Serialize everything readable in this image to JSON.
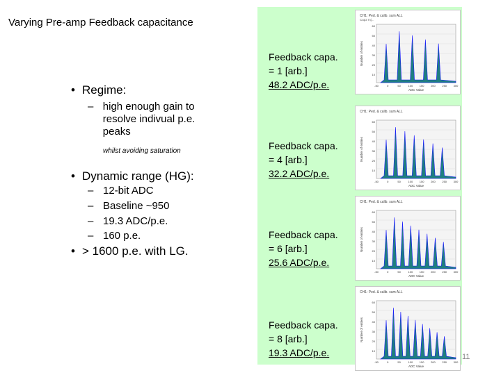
{
  "title": "Varying Pre-amp Feedback capacitance",
  "left": {
    "regime_label": "Regime:",
    "regime_sub": "high enough gain to resolve indivual p.e. peaks",
    "regime_note": "whilst avoiding saturation",
    "dynamic_label": "Dynamic range (HG):",
    "dynamic_items": [
      "12-bit ADC",
      "Baseline ~950",
      "19.3 ADC/p.e.",
      "160 p.e."
    ],
    "lg_label": "> 1600 p.e. with LG."
  },
  "panels": [
    {
      "line1": "Feedback capa.",
      "line2": "= 1 [arb.]",
      "line3": "48.2 ADC/p.e.",
      "hist_title": "CH1: Ped. & calib. sum ALL",
      "hist_sub": "Cap2 Inj...",
      "ylabel": "Number of entries",
      "xlabel": "ADC Value",
      "xticks": [
        "-50",
        "0",
        "50",
        "100",
        "150",
        "200",
        "250",
        "300"
      ],
      "yticks": [
        "60",
        "50",
        "40",
        "30",
        "20",
        "10"
      ]
    },
    {
      "line1": "Feedback capa.",
      "line2": "= 4 [arb.]",
      "line3": "32.2 ADC/p.e.",
      "hist_title": "CH1: Ped. & calib. sum ALL",
      "hist_sub": "",
      "ylabel": "Number of entries",
      "xlabel": "ADC Value",
      "xticks": [
        "-50",
        "0",
        "50",
        "100",
        "150",
        "200",
        "250",
        "300"
      ],
      "yticks": [
        "60",
        "50",
        "40",
        "30",
        "20",
        "10"
      ]
    },
    {
      "line1": "Feedback capa.",
      "line2": "= 6 [arb.]",
      "line3": "25.6 ADC/p.e.",
      "hist_title": "CH1: Ped. & calib. sum ALL",
      "hist_sub": "",
      "ylabel": "Number of entries",
      "xlabel": "ADC Value",
      "xticks": [
        "-50",
        "0",
        "50",
        "100",
        "150",
        "200",
        "250",
        "300"
      ],
      "yticks": [
        "60",
        "50",
        "40",
        "30",
        "20",
        "10"
      ]
    },
    {
      "line1": "Feedback capa.",
      "line2": "= 8 [arb.]",
      "line3": "19.3 ADC/p.e.",
      "hist_title": "CH1: Ped. & calib. sum ALL",
      "hist_sub": "",
      "ylabel": "Number of entries",
      "xlabel": "ADC Value",
      "xticks": [
        "-50",
        "0",
        "50",
        "100",
        "150",
        "200",
        "250",
        "300"
      ],
      "yticks": [
        "60",
        "50",
        "40",
        "30",
        "20",
        "10"
      ]
    }
  ],
  "page_number": "11",
  "colors": {
    "panel_bg": "#ccffcc",
    "hist_fill": "#1f7f7f",
    "hist_line": "#1a1aff"
  }
}
